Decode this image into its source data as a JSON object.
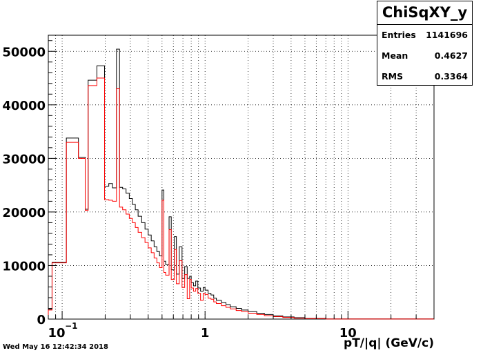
{
  "stats": {
    "title": "ChiSqXY_y",
    "rows": [
      {
        "label": "Entries",
        "value": "1141696"
      },
      {
        "label": "Mean",
        "value": "0.4627"
      },
      {
        "label": "RMS",
        "value": "0.3364"
      }
    ]
  },
  "footer": {
    "timestamp": "Wed May 16 12:42:34 2018"
  },
  "chart_data": {
    "type": "histogram",
    "title": "",
    "xlabel": "pT/|q| (GeV/c)",
    "ylabel": "",
    "xscale": "log",
    "xlim": [
      0.08,
      40
    ],
    "ylim": [
      0,
      53000
    ],
    "grid": true,
    "y_ticks": [
      0,
      10000,
      20000,
      30000,
      40000,
      50000
    ],
    "x_ticks": [
      {
        "value": 0.1,
        "label": "10",
        "sup": "−1"
      },
      {
        "value": 1,
        "label": "1",
        "sup": ""
      },
      {
        "value": 10,
        "label": "10",
        "sup": ""
      }
    ],
    "series": [
      {
        "color": "#000000",
        "bins": [
          [
            0.08,
            0.085,
            1800
          ],
          [
            0.085,
            0.107,
            10600
          ],
          [
            0.107,
            0.13,
            33800
          ],
          [
            0.13,
            0.145,
            30200
          ],
          [
            0.145,
            0.152,
            20500
          ],
          [
            0.152,
            0.175,
            44600
          ],
          [
            0.175,
            0.198,
            47300
          ],
          [
            0.198,
            0.212,
            24800
          ],
          [
            0.212,
            0.225,
            25300
          ],
          [
            0.225,
            0.24,
            24500
          ],
          [
            0.24,
            0.252,
            50400
          ],
          [
            0.252,
            0.265,
            24600
          ],
          [
            0.265,
            0.28,
            24300
          ],
          [
            0.28,
            0.295,
            23500
          ],
          [
            0.295,
            0.31,
            22500
          ],
          [
            0.31,
            0.325,
            21400
          ],
          [
            0.325,
            0.34,
            20400
          ],
          [
            0.34,
            0.36,
            19200
          ],
          [
            0.36,
            0.38,
            18000
          ],
          [
            0.38,
            0.4,
            16800
          ],
          [
            0.4,
            0.42,
            15700
          ],
          [
            0.42,
            0.44,
            14600
          ],
          [
            0.44,
            0.46,
            13500
          ],
          [
            0.46,
            0.48,
            12600
          ],
          [
            0.48,
            0.5,
            11800
          ],
          [
            0.5,
            0.515,
            24100
          ],
          [
            0.515,
            0.53,
            10800
          ],
          [
            0.53,
            0.56,
            10200
          ],
          [
            0.56,
            0.58,
            19100
          ],
          [
            0.58,
            0.61,
            9200
          ],
          [
            0.61,
            0.63,
            15400
          ],
          [
            0.63,
            0.66,
            8400
          ],
          [
            0.66,
            0.69,
            13500
          ],
          [
            0.69,
            0.72,
            7600
          ],
          [
            0.72,
            0.75,
            9800
          ],
          [
            0.75,
            0.78,
            7600
          ],
          [
            0.78,
            0.8,
            8000
          ],
          [
            0.8,
            0.83,
            6800
          ],
          [
            0.83,
            0.86,
            6200
          ],
          [
            0.86,
            0.89,
            7100
          ],
          [
            0.89,
            0.93,
            5800
          ],
          [
            0.93,
            0.97,
            5200
          ],
          [
            0.97,
            1.0,
            5900
          ],
          [
            1.0,
            1.05,
            5400
          ],
          [
            1.05,
            1.1,
            4800
          ],
          [
            1.1,
            1.15,
            4500
          ],
          [
            1.15,
            1.2,
            3900
          ],
          [
            1.2,
            1.3,
            3500
          ],
          [
            1.3,
            1.4,
            3100
          ],
          [
            1.4,
            1.5,
            2700
          ],
          [
            1.5,
            1.65,
            2300
          ],
          [
            1.65,
            1.8,
            2000
          ],
          [
            1.8,
            2.0,
            1700
          ],
          [
            2.0,
            2.3,
            1400
          ],
          [
            2.3,
            2.6,
            1100
          ],
          [
            2.6,
            3.0,
            850
          ],
          [
            3.0,
            3.5,
            600
          ],
          [
            3.5,
            4.2,
            400
          ],
          [
            4.2,
            5.0,
            250
          ],
          [
            5.0,
            7.0,
            120
          ],
          [
            7.0,
            40,
            30
          ]
        ]
      },
      {
        "color": "#ff0000",
        "bins": [
          [
            0.08,
            0.085,
            1700
          ],
          [
            0.085,
            0.107,
            10500
          ],
          [
            0.107,
            0.13,
            33000
          ],
          [
            0.13,
            0.145,
            30000
          ],
          [
            0.145,
            0.152,
            20300
          ],
          [
            0.152,
            0.175,
            43600
          ],
          [
            0.175,
            0.198,
            45000
          ],
          [
            0.198,
            0.212,
            22300
          ],
          [
            0.212,
            0.225,
            22200
          ],
          [
            0.225,
            0.24,
            22000
          ],
          [
            0.24,
            0.252,
            43000
          ],
          [
            0.252,
            0.265,
            20900
          ],
          [
            0.265,
            0.28,
            20400
          ],
          [
            0.28,
            0.295,
            19600
          ],
          [
            0.295,
            0.31,
            18800
          ],
          [
            0.31,
            0.325,
            18000
          ],
          [
            0.325,
            0.34,
            17100
          ],
          [
            0.34,
            0.36,
            16200
          ],
          [
            0.36,
            0.38,
            15200
          ],
          [
            0.38,
            0.4,
            14300
          ],
          [
            0.4,
            0.42,
            13300
          ],
          [
            0.42,
            0.44,
            12400
          ],
          [
            0.44,
            0.46,
            11400
          ],
          [
            0.46,
            0.48,
            10500
          ],
          [
            0.48,
            0.5,
            9600
          ],
          [
            0.5,
            0.515,
            22200
          ],
          [
            0.515,
            0.53,
            8700
          ],
          [
            0.53,
            0.56,
            8200
          ],
          [
            0.56,
            0.58,
            16700
          ],
          [
            0.58,
            0.61,
            7400
          ],
          [
            0.61,
            0.63,
            13000
          ],
          [
            0.63,
            0.66,
            6600
          ],
          [
            0.66,
            0.69,
            10900
          ],
          [
            0.69,
            0.72,
            5900
          ],
          [
            0.72,
            0.75,
            8300
          ],
          [
            0.75,
            0.78,
            3800
          ],
          [
            0.78,
            0.8,
            7400
          ],
          [
            0.8,
            0.83,
            5800
          ],
          [
            0.83,
            0.86,
            5200
          ],
          [
            0.86,
            0.89,
            5700
          ],
          [
            0.89,
            0.93,
            4800
          ],
          [
            0.93,
            0.97,
            3500
          ],
          [
            0.97,
            1.0,
            4800
          ],
          [
            1.0,
            1.05,
            4600
          ],
          [
            1.05,
            1.1,
            3900
          ],
          [
            1.1,
            1.15,
            3700
          ],
          [
            1.15,
            1.2,
            3200
          ],
          [
            1.2,
            1.3,
            2900
          ],
          [
            1.3,
            1.4,
            2500
          ],
          [
            1.4,
            1.5,
            2200
          ],
          [
            1.5,
            1.65,
            1900
          ],
          [
            1.65,
            1.8,
            1600
          ],
          [
            1.8,
            2.0,
            1400
          ],
          [
            2.0,
            2.3,
            1100
          ],
          [
            2.3,
            2.6,
            850
          ],
          [
            2.6,
            3.0,
            650
          ],
          [
            3.0,
            3.5,
            450
          ],
          [
            3.5,
            4.2,
            300
          ],
          [
            4.2,
            5.0,
            180
          ],
          [
            5.0,
            7.0,
            90
          ],
          [
            7.0,
            40,
            20
          ]
        ]
      }
    ]
  }
}
